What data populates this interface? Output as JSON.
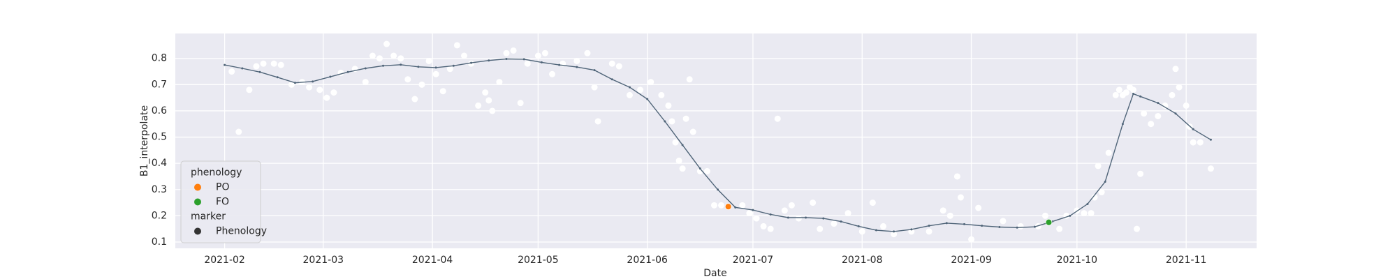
{
  "chart_data": {
    "type": "line",
    "x_label": "Date",
    "y_label": "B1_interpolate",
    "xlim": [
      "2021-01-18",
      "2021-11-21"
    ],
    "xticks": [
      {
        "value": "2021-02-01",
        "label": "2021-02"
      },
      {
        "value": "2021-03-01",
        "label": "2021-03"
      },
      {
        "value": "2021-04-01",
        "label": "2021-04"
      },
      {
        "value": "2021-05-01",
        "label": "2021-05"
      },
      {
        "value": "2021-06-01",
        "label": "2021-06"
      },
      {
        "value": "2021-07-01",
        "label": "2021-07"
      },
      {
        "value": "2021-08-01",
        "label": "2021-08"
      },
      {
        "value": "2021-09-01",
        "label": "2021-09"
      },
      {
        "value": "2021-10-01",
        "label": "2021-10"
      },
      {
        "value": "2021-11-01",
        "label": "2021-11"
      }
    ],
    "ylim": [
      0.076,
      0.895
    ],
    "yticks": [
      0.1,
      0.2,
      0.3,
      0.4,
      0.5,
      0.6,
      0.7,
      0.8
    ],
    "grid": true,
    "background": "#eaeaf2",
    "legend": {
      "position": "lower left",
      "hue_title": "phenology",
      "style_title": "marker",
      "style_entries": [
        "Phenology"
      ],
      "style_color": "#333333"
    },
    "series": [
      {
        "kind": "scatter",
        "color": "#ffffff",
        "x": [
          "2021-02-03",
          "2021-02-05",
          "2021-02-08",
          "2021-02-10",
          "2021-02-12",
          "2021-02-15",
          "2021-02-17",
          "2021-02-20",
          "2021-02-23",
          "2021-02-25",
          "2021-02-28",
          "2021-03-02",
          "2021-03-04",
          "2021-03-06",
          "2021-03-10",
          "2021-03-13",
          "2021-03-15",
          "2021-03-17",
          "2021-03-19",
          "2021-03-21",
          "2021-03-23",
          "2021-03-25",
          "2021-03-27",
          "2021-03-29",
          "2021-03-31",
          "2021-04-02",
          "2021-04-04",
          "2021-04-06",
          "2021-04-08",
          "2021-04-10",
          "2021-04-12",
          "2021-04-14",
          "2021-04-16",
          "2021-04-17",
          "2021-04-18",
          "2021-04-20",
          "2021-04-22",
          "2021-04-24",
          "2021-04-26",
          "2021-04-28",
          "2021-05-01",
          "2021-05-03",
          "2021-05-05",
          "2021-05-08",
          "2021-05-12",
          "2021-05-15",
          "2021-05-17",
          "2021-05-18",
          "2021-05-22",
          "2021-05-24",
          "2021-05-27",
          "2021-05-30",
          "2021-06-02",
          "2021-06-05",
          "2021-06-07",
          "2021-06-08",
          "2021-06-09",
          "2021-06-10",
          "2021-06-11",
          "2021-06-12",
          "2021-06-13",
          "2021-06-14",
          "2021-06-16",
          "2021-06-18",
          "2021-06-20",
          "2021-06-22",
          "2021-06-28",
          "2021-06-30",
          "2021-07-02",
          "2021-07-04",
          "2021-07-06",
          "2021-07-08",
          "2021-07-10",
          "2021-07-12",
          "2021-07-14",
          "2021-07-18",
          "2021-07-20",
          "2021-07-24",
          "2021-07-28",
          "2021-08-01",
          "2021-08-04",
          "2021-08-07",
          "2021-08-10",
          "2021-08-15",
          "2021-08-20",
          "2021-08-24",
          "2021-08-26",
          "2021-08-28",
          "2021-08-29",
          "2021-09-01",
          "2021-09-03",
          "2021-09-10",
          "2021-09-15",
          "2021-09-20",
          "2021-09-22",
          "2021-09-26",
          "2021-09-28",
          "2021-10-01",
          "2021-10-03",
          "2021-10-05",
          "2021-10-06",
          "2021-10-07",
          "2021-10-08",
          "2021-10-10",
          "2021-10-12",
          "2021-10-13",
          "2021-10-14",
          "2021-10-15",
          "2021-10-16",
          "2021-10-17",
          "2021-10-18",
          "2021-10-19",
          "2021-10-20",
          "2021-10-22",
          "2021-10-24",
          "2021-10-26",
          "2021-10-28",
          "2021-10-29",
          "2021-10-30",
          "2021-11-01",
          "2021-11-02",
          "2021-11-03",
          "2021-11-05",
          "2021-11-08"
        ],
        "values": [
          0.75,
          0.52,
          0.68,
          0.77,
          0.78,
          0.78,
          0.775,
          0.7,
          0.71,
          0.69,
          0.68,
          0.65,
          0.67,
          0.745,
          0.76,
          0.71,
          0.81,
          0.8,
          0.855,
          0.81,
          0.8,
          0.72,
          0.645,
          0.7,
          0.79,
          0.74,
          0.675,
          0.76,
          0.85,
          0.81,
          0.78,
          0.62,
          0.67,
          0.64,
          0.6,
          0.71,
          0.82,
          0.83,
          0.63,
          0.78,
          0.81,
          0.82,
          0.74,
          0.78,
          0.79,
          0.82,
          0.69,
          0.56,
          0.78,
          0.77,
          0.66,
          0.68,
          0.71,
          0.66,
          0.62,
          0.56,
          0.48,
          0.41,
          0.38,
          0.57,
          0.72,
          0.52,
          0.37,
          0.37,
          0.24,
          0.24,
          0.24,
          0.21,
          0.19,
          0.16,
          0.15,
          0.57,
          0.22,
          0.24,
          0.19,
          0.25,
          0.15,
          0.17,
          0.21,
          0.14,
          0.25,
          0.16,
          0.13,
          0.14,
          0.14,
          0.22,
          0.2,
          0.35,
          0.27,
          0.11,
          0.23,
          0.18,
          0.16,
          0.16,
          0.2,
          0.15,
          0.2,
          0.22,
          0.21,
          0.21,
          0.27,
          0.39,
          0.29,
          0.44,
          0.66,
          0.68,
          0.66,
          0.67,
          0.69,
          0.68,
          0.15,
          0.36,
          0.59,
          0.55,
          0.58,
          0.62,
          0.66,
          0.76,
          0.69,
          0.62,
          0.54,
          0.48,
          0.48,
          0.38
        ]
      },
      {
        "kind": "line",
        "color": "#4f6478",
        "x": [
          "2021-02-01",
          "2021-02-06",
          "2021-02-11",
          "2021-02-16",
          "2021-02-21",
          "2021-02-26",
          "2021-03-03",
          "2021-03-08",
          "2021-03-13",
          "2021-03-18",
          "2021-03-23",
          "2021-03-28",
          "2021-04-02",
          "2021-04-07",
          "2021-04-12",
          "2021-04-17",
          "2021-04-22",
          "2021-04-27",
          "2021-05-02",
          "2021-05-07",
          "2021-05-12",
          "2021-05-17",
          "2021-05-22",
          "2021-05-27",
          "2021-06-01",
          "2021-06-06",
          "2021-06-11",
          "2021-06-16",
          "2021-06-21",
          "2021-06-26",
          "2021-07-01",
          "2021-07-06",
          "2021-07-11",
          "2021-07-16",
          "2021-07-21",
          "2021-07-26",
          "2021-07-31",
          "2021-08-05",
          "2021-08-10",
          "2021-08-15",
          "2021-08-20",
          "2021-08-25",
          "2021-08-30",
          "2021-09-04",
          "2021-09-09",
          "2021-09-14",
          "2021-09-19",
          "2021-09-24",
          "2021-09-29",
          "2021-10-04",
          "2021-10-09",
          "2021-10-14",
          "2021-10-17",
          "2021-10-19",
          "2021-10-24",
          "2021-10-29",
          "2021-11-03",
          "2021-11-08"
        ],
        "values": [
          0.775,
          0.762,
          0.748,
          0.728,
          0.707,
          0.712,
          0.73,
          0.748,
          0.762,
          0.772,
          0.776,
          0.768,
          0.765,
          0.772,
          0.783,
          0.792,
          0.798,
          0.797,
          0.785,
          0.775,
          0.767,
          0.755,
          0.72,
          0.69,
          0.645,
          0.56,
          0.47,
          0.38,
          0.3,
          0.232,
          0.222,
          0.205,
          0.193,
          0.193,
          0.19,
          0.178,
          0.16,
          0.145,
          0.14,
          0.148,
          0.162,
          0.172,
          0.168,
          0.162,
          0.157,
          0.155,
          0.158,
          0.178,
          0.2,
          0.245,
          0.33,
          0.55,
          0.665,
          0.655,
          0.63,
          0.59,
          0.53,
          0.49
        ]
      },
      {
        "kind": "point",
        "name": "PO",
        "color": "#ff7f0e",
        "x": [
          "2021-06-24"
        ],
        "values": [
          0.235
        ]
      },
      {
        "kind": "point",
        "name": "FO",
        "color": "#2ca02c",
        "x": [
          "2021-09-23"
        ],
        "values": [
          0.175
        ]
      }
    ]
  }
}
